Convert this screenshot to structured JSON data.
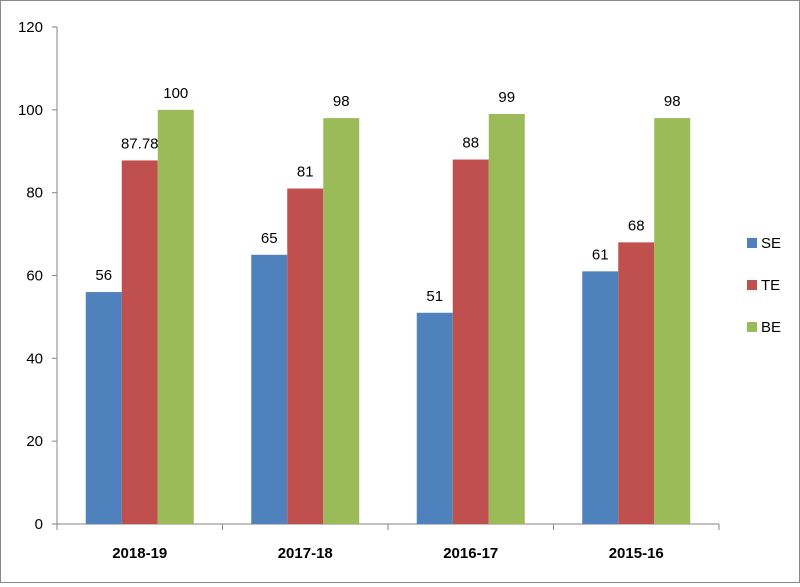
{
  "chart_data": {
    "type": "bar",
    "categories": [
      "2018-19",
      "2017-18",
      "2016-17",
      "2015-16"
    ],
    "series": [
      {
        "name": "SE",
        "color": "#4F81BD",
        "values": [
          56,
          65,
          51,
          61
        ],
        "labels": [
          "56",
          "65",
          "51",
          "61"
        ]
      },
      {
        "name": "TE",
        "color": "#C0504D",
        "values": [
          87.78,
          81,
          88,
          68
        ],
        "labels": [
          "87.78",
          "81",
          "88",
          "68"
        ]
      },
      {
        "name": "BE",
        "color": "#9BBB59",
        "values": [
          100,
          98,
          99,
          98
        ],
        "labels": [
          "100",
          "98",
          "99",
          "98"
        ]
      }
    ],
    "yticks": [
      "0",
      "20",
      "40",
      "60",
      "80",
      "100",
      "120"
    ],
    "ylim": [
      0,
      120
    ],
    "grid": false,
    "legend": "right"
  }
}
